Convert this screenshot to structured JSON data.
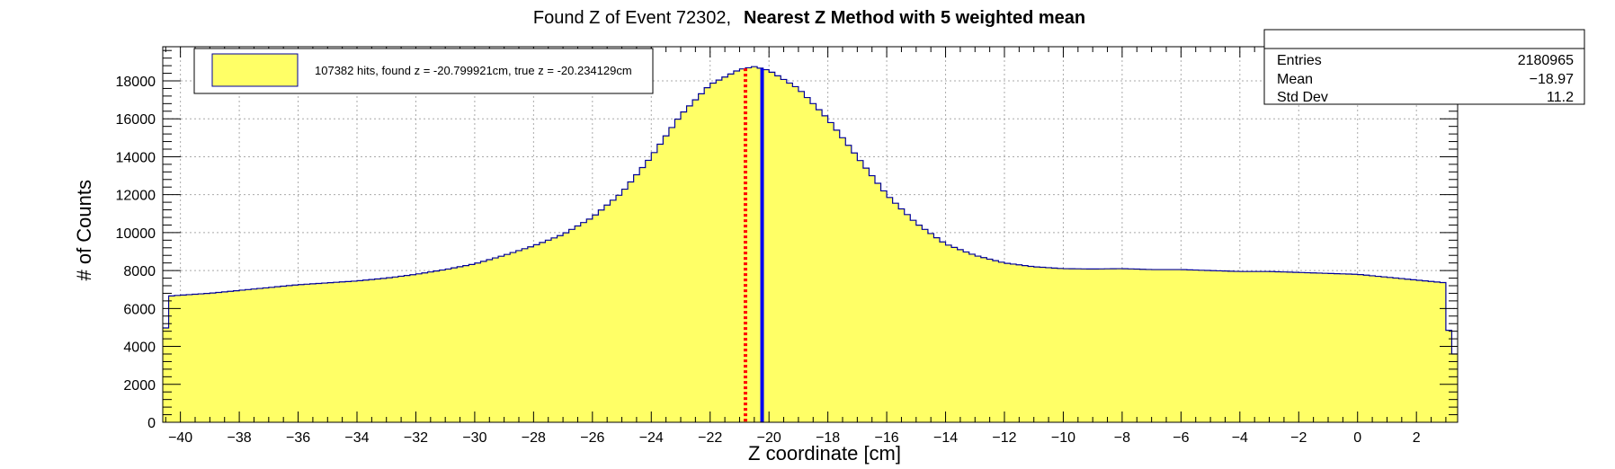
{
  "chart_data": {
    "type": "histogram",
    "title": "Found Z of Event 72302,",
    "title_bold": "Nearest Z Method with 5 weighted mean",
    "xlabel": "Z coordinate [cm]",
    "ylabel": "# of Counts",
    "xlim": [
      -40.6,
      3.4
    ],
    "ylim": [
      0,
      19800
    ],
    "grid": true,
    "x_ticks": [
      -40,
      -38,
      -36,
      -34,
      -32,
      -30,
      -28,
      -26,
      -24,
      -22,
      -20,
      -18,
      -16,
      -14,
      -12,
      -10,
      -8,
      -6,
      -4,
      -2,
      0,
      2
    ],
    "y_ticks": [
      0,
      2000,
      4000,
      6000,
      8000,
      10000,
      12000,
      14000,
      16000,
      18000
    ],
    "profile": [
      [
        -40.6,
        3300
      ],
      [
        -40.4,
        6650
      ],
      [
        -40,
        6700
      ],
      [
        -39,
        6800
      ],
      [
        -38,
        6950
      ],
      [
        -37,
        7100
      ],
      [
        -36,
        7250
      ],
      [
        -35,
        7350
      ],
      [
        -34,
        7450
      ],
      [
        -33,
        7600
      ],
      [
        -32,
        7800
      ],
      [
        -31,
        8050
      ],
      [
        -30,
        8350
      ],
      [
        -29,
        8800
      ],
      [
        -28,
        9300
      ],
      [
        -27,
        9900
      ],
      [
        -26,
        10800
      ],
      [
        -25,
        12100
      ],
      [
        -24,
        14000
      ],
      [
        -23,
        16200
      ],
      [
        -22,
        17800
      ],
      [
        -21,
        18600
      ],
      [
        -20.5,
        18750
      ],
      [
        -20,
        18550
      ],
      [
        -19,
        17600
      ],
      [
        -18,
        16000
      ],
      [
        -17,
        14000
      ],
      [
        -16,
        12000
      ],
      [
        -15,
        10500
      ],
      [
        -14,
        9400
      ],
      [
        -13,
        8800
      ],
      [
        -12,
        8400
      ],
      [
        -11,
        8200
      ],
      [
        -10,
        8100
      ],
      [
        -9,
        8080
      ],
      [
        -8,
        8100
      ],
      [
        -7,
        8050
      ],
      [
        -6,
        8050
      ],
      [
        -5,
        8000
      ],
      [
        -4,
        7950
      ],
      [
        -3,
        7950
      ],
      [
        -2,
        7900
      ],
      [
        -1,
        7850
      ],
      [
        0,
        7800
      ],
      [
        1,
        7650
      ],
      [
        2,
        7500
      ],
      [
        3,
        7350
      ],
      [
        3.15,
        3600
      ],
      [
        3.4,
        3600
      ]
    ],
    "bin_width": 0.2,
    "fill_color": "#ffff66",
    "line_color": "#000099",
    "markers": [
      {
        "x": -20.8,
        "color": "#ff0000",
        "style": "dotted"
      },
      {
        "x": -20.234,
        "color": "#0000ee",
        "style": "solid"
      }
    ],
    "legend": {
      "entry": "107382 hits, found z = -20.799921cm, true z = -20.234129cm",
      "placement": "top-left",
      "swatch_color": "#ffff66"
    },
    "stats": {
      "rows": [
        {
          "label": "Entries",
          "value": "2180965"
        },
        {
          "label": "Mean",
          "value": "−18.97"
        },
        {
          "label": "Std Dev",
          "value": "11.2"
        }
      ]
    }
  }
}
